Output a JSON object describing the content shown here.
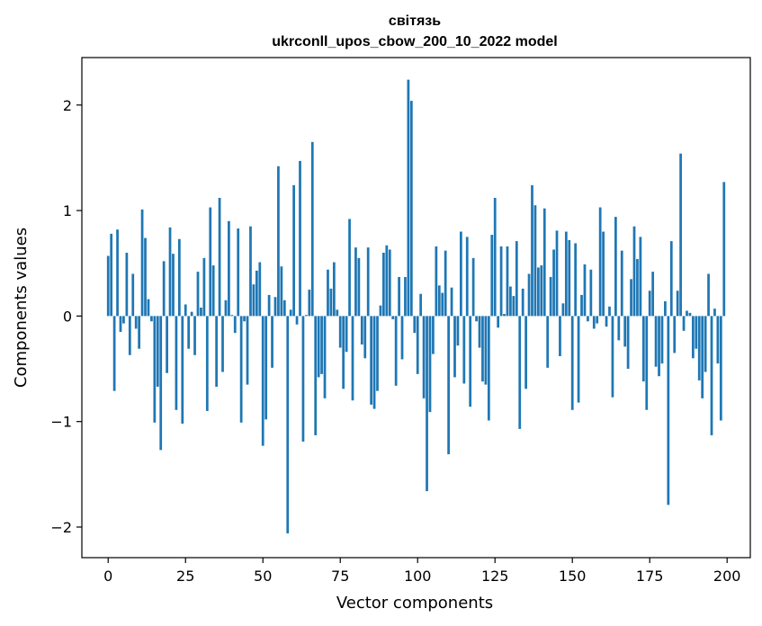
{
  "chart_data": {
    "type": "bar",
    "title": "світязь",
    "subtitle": "ukrconll_upos_cbow_200_10_2022 model",
    "xlabel": "Vector components",
    "ylabel": "Components values",
    "xlim": [
      -8.5,
      207.5
    ],
    "ylim": [
      -2.29,
      2.45
    ],
    "xticks": [
      0,
      25,
      50,
      75,
      100,
      125,
      150,
      175,
      200
    ],
    "xtick_labels": [
      "0",
      "25",
      "50",
      "75",
      "100",
      "125",
      "150",
      "175",
      "200"
    ],
    "yticks": [
      -2,
      -1,
      0,
      1,
      2
    ],
    "ytick_labels": [
      "−2",
      "−1",
      "0",
      "1",
      "2"
    ],
    "bar_color": "#1f77b4",
    "grid": false,
    "x": [
      0,
      1,
      2,
      3,
      4,
      5,
      6,
      7,
      8,
      9,
      10,
      11,
      12,
      13,
      14,
      15,
      16,
      17,
      18,
      19,
      20,
      21,
      22,
      23,
      24,
      25,
      26,
      27,
      28,
      29,
      30,
      31,
      32,
      33,
      34,
      35,
      36,
      37,
      38,
      39,
      40,
      41,
      42,
      43,
      44,
      45,
      46,
      47,
      48,
      49,
      50,
      51,
      52,
      53,
      54,
      55,
      56,
      57,
      58,
      59,
      60,
      61,
      62,
      63,
      64,
      65,
      66,
      67,
      68,
      69,
      70,
      71,
      72,
      73,
      74,
      75,
      76,
      77,
      78,
      79,
      80,
      81,
      82,
      83,
      84,
      85,
      86,
      87,
      88,
      89,
      90,
      91,
      92,
      93,
      94,
      95,
      96,
      97,
      98,
      99,
      100,
      101,
      102,
      103,
      104,
      105,
      106,
      107,
      108,
      109,
      110,
      111,
      112,
      113,
      114,
      115,
      116,
      117,
      118,
      119,
      120,
      121,
      122,
      123,
      124,
      125,
      126,
      127,
      128,
      129,
      130,
      131,
      132,
      133,
      134,
      135,
      136,
      137,
      138,
      139,
      140,
      141,
      142,
      143,
      144,
      145,
      146,
      147,
      148,
      149,
      150,
      151,
      152,
      153,
      154,
      155,
      156,
      157,
      158,
      159,
      160,
      161,
      162,
      163,
      164,
      165,
      166,
      167,
      168,
      169,
      170,
      171,
      172,
      173,
      174,
      175,
      176,
      177,
      178,
      179,
      180,
      181,
      182,
      183,
      184,
      185,
      186,
      187,
      188,
      189,
      190,
      191,
      192,
      193,
      194,
      195,
      196,
      197,
      198,
      199
    ],
    "values": [
      0.57,
      0.78,
      -0.71,
      0.82,
      -0.15,
      -0.07,
      0.6,
      -0.37,
      0.4,
      -0.12,
      -0.31,
      1.01,
      0.74,
      0.16,
      -0.05,
      -1.01,
      -0.67,
      -1.27,
      0.52,
      -0.54,
      0.84,
      0.59,
      -0.89,
      0.73,
      -1.02,
      0.11,
      -0.31,
      0.04,
      -0.37,
      0.42,
      0.08,
      0.55,
      -0.9,
      1.03,
      0.48,
      -0.67,
      1.12,
      -0.53,
      0.15,
      0.9,
      0.01,
      -0.16,
      0.83,
      -1.01,
      -0.05,
      -0.65,
      0.85,
      0.3,
      0.43,
      0.51,
      -1.23,
      -0.98,
      0.2,
      -0.49,
      0.18,
      1.42,
      0.47,
      0.15,
      -2.06,
      0.06,
      1.24,
      -0.08,
      1.47,
      -1.19,
      0.01,
      0.25,
      1.65,
      -1.13,
      -0.58,
      -0.55,
      -0.78,
      0.44,
      0.26,
      0.51,
      0.06,
      -0.3,
      -0.69,
      -0.34,
      0.92,
      -0.8,
      0.65,
      0.55,
      -0.27,
      -0.4,
      0.65,
      -0.84,
      -0.88,
      -0.71,
      0.1,
      0.6,
      0.67,
      0.63,
      -0.03,
      -0.66,
      0.37,
      -0.41,
      0.37,
      2.24,
      2.04,
      -0.16,
      -0.55,
      0.21,
      -0.78,
      -1.66,
      -0.91,
      -0.36,
      0.66,
      0.29,
      0.22,
      0.62,
      -1.31,
      0.27,
      -0.58,
      -0.28,
      0.8,
      -0.64,
      0.75,
      -0.86,
      0.55,
      -0.05,
      -0.3,
      -0.62,
      -0.65,
      -0.99,
      0.77,
      1.12,
      -0.11,
      0.66,
      0.02,
      0.66,
      0.28,
      0.19,
      0.71,
      -1.07,
      0.26,
      -0.69,
      0.4,
      1.24,
      1.05,
      0.46,
      0.48,
      1.02,
      -0.49,
      0.37,
      0.63,
      0.81,
      -0.38,
      0.12,
      0.8,
      0.72,
      -0.89,
      0.69,
      -0.82,
      0.2,
      0.49,
      -0.05,
      0.44,
      -0.12,
      -0.07,
      1.03,
      0.8,
      -0.1,
      0.09,
      -0.77,
      0.94,
      -0.23,
      0.62,
      -0.29,
      -0.5,
      0.35,
      0.85,
      0.54,
      0.75,
      -0.62,
      -0.89,
      0.24,
      0.42,
      -0.48,
      -0.57,
      -0.45,
      0.14,
      -1.79,
      0.71,
      -0.35,
      0.24,
      1.54,
      -0.14,
      0.05,
      0.03,
      -0.4,
      -0.31,
      -0.61,
      -0.78,
      -0.53,
      0.4,
      -1.13,
      0.07,
      -0.45,
      -0.99,
      1.27
    ]
  }
}
